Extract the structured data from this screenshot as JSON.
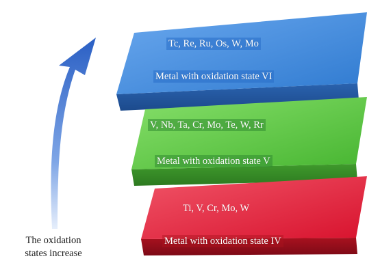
{
  "levels": [
    {
      "elements": "Tc, Re, Ru, Os, W, Mo",
      "label": "Metal with oxidation state VI",
      "color": "#3b86d8"
    },
    {
      "elements": "V, Nb, Ta, Cr, Mo, Te, W, Rr",
      "label": "Metal with oxidation state V",
      "color": "#58c43e"
    },
    {
      "elements": "Ti, V, Cr, Mo, W",
      "label": "Metal with oxidation state IV",
      "color": "#e5203a"
    }
  ],
  "arrow": {
    "caption_line1": "The oxidation",
    "caption_line2": "states increase",
    "color": "#2f67c9"
  }
}
